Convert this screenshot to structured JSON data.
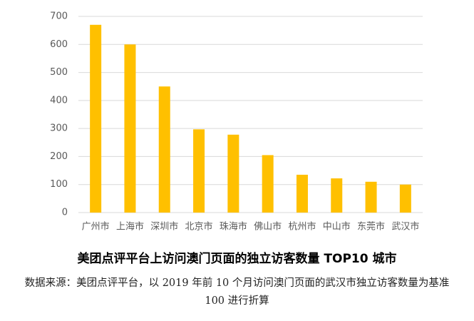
{
  "chart_data": {
    "type": "bar",
    "title": "美团点评平台上访问澳门页面的独立访客数量 TOP10 城市",
    "caption": "数据来源：美团点评平台，以 2019 年前 10 个月访问澳门页面的武汉市独立访客数量为基准 100 进行折算",
    "categories": [
      "广州市",
      "上海市",
      "深圳市",
      "北京市",
      "珠海市",
      "佛山市",
      "杭州市",
      "中山市",
      "东莞市",
      "武汉市"
    ],
    "values": [
      670,
      600,
      450,
      297,
      278,
      205,
      135,
      122,
      110,
      100
    ],
    "color": "#ffc000",
    "ylim": [
      0,
      700
    ],
    "yticks": [
      0,
      100,
      200,
      300,
      400,
      500,
      600,
      700
    ],
    "grid": true
  }
}
